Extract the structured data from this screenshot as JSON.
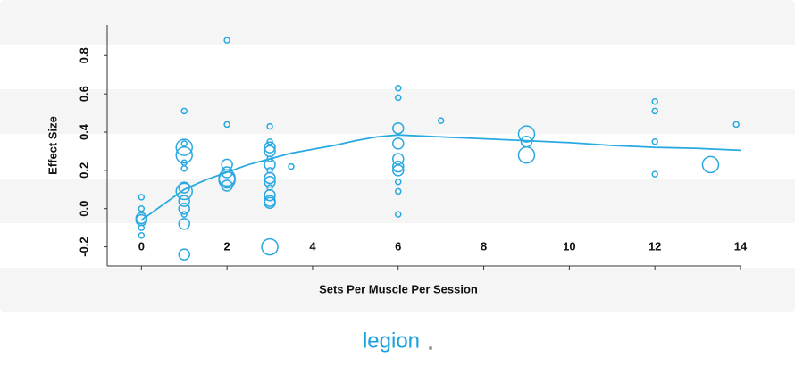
{
  "chart_data": {
    "type": "scatter",
    "xlabel": "Sets Per Muscle Per Session",
    "ylabel": "Effect Size",
    "xlim": [
      -0.8,
      14
    ],
    "ylim": [
      -0.3,
      0.96
    ],
    "xticks": [
      0,
      2,
      4,
      6,
      8,
      10,
      12,
      14
    ],
    "yticks": [
      -0.2,
      {
        "value": 0,
        "label": "0.0"
      },
      0.2,
      0.4,
      0.6,
      0.8
    ],
    "series": [
      {
        "type": "scatter",
        "color": "#29a9e1",
        "x": [
          0,
          0,
          0,
          0,
          0,
          0,
          1,
          1,
          1,
          1,
          1,
          1,
          1,
          1,
          1,
          1,
          1,
          1,
          1,
          2,
          2,
          2,
          2,
          2,
          2,
          2,
          3,
          3,
          3,
          3,
          3,
          3,
          3,
          3,
          3,
          3,
          3,
          3,
          3,
          3,
          3.5,
          6,
          6,
          6,
          6,
          6,
          6,
          6,
          6,
          6,
          6,
          7,
          9,
          9,
          9,
          12,
          12,
          12,
          12,
          13.3,
          13.9
        ],
        "values": [
          0.06,
          0.0,
          -0.05,
          -0.06,
          -0.1,
          -0.14,
          0.51,
          0.34,
          0.32,
          0.28,
          0.24,
          0.21,
          0.11,
          0.09,
          0.04,
          0.0,
          -0.03,
          -0.08,
          -0.24,
          0.88,
          0.44,
          0.23,
          0.19,
          0.16,
          0.15,
          0.12,
          0.43,
          0.35,
          0.32,
          0.3,
          0.26,
          0.23,
          0.2,
          0.16,
          0.14,
          0.11,
          0.07,
          0.03,
          0.04,
          -0.2,
          0.22,
          0.63,
          0.58,
          0.42,
          0.34,
          0.26,
          0.22,
          0.2,
          0.14,
          0.09,
          -0.03,
          0.46,
          0.39,
          0.35,
          0.28,
          0.56,
          0.51,
          0.35,
          0.18,
          0.23,
          0.44
        ],
        "sizes": [
          1,
          1,
          2,
          2,
          1,
          1,
          1,
          1,
          3,
          3,
          1,
          1,
          2,
          3,
          2,
          2,
          1,
          2,
          2,
          1,
          1,
          2,
          2,
          3,
          3,
          2,
          1,
          1,
          2,
          2,
          1,
          2,
          1,
          2,
          2,
          1,
          2,
          2,
          2,
          3,
          1,
          1,
          1,
          2,
          2,
          2,
          2,
          2,
          1,
          1,
          1,
          1,
          3,
          2,
          3,
          1,
          1,
          1,
          1,
          3,
          1
        ]
      },
      {
        "type": "line",
        "color": "#29a9e1",
        "x": [
          0,
          0.5,
          1,
          1.5,
          2,
          2.5,
          3,
          3.5,
          4,
          4.5,
          5,
          5.5,
          6,
          7,
          8,
          9,
          10,
          11,
          12,
          13,
          14
        ],
        "values": [
          -0.06,
          0.02,
          0.1,
          0.15,
          0.19,
          0.23,
          0.26,
          0.29,
          0.31,
          0.33,
          0.355,
          0.375,
          0.385,
          0.375,
          0.365,
          0.355,
          0.345,
          0.33,
          0.32,
          0.315,
          0.305
        ]
      }
    ]
  },
  "brand": "legion"
}
